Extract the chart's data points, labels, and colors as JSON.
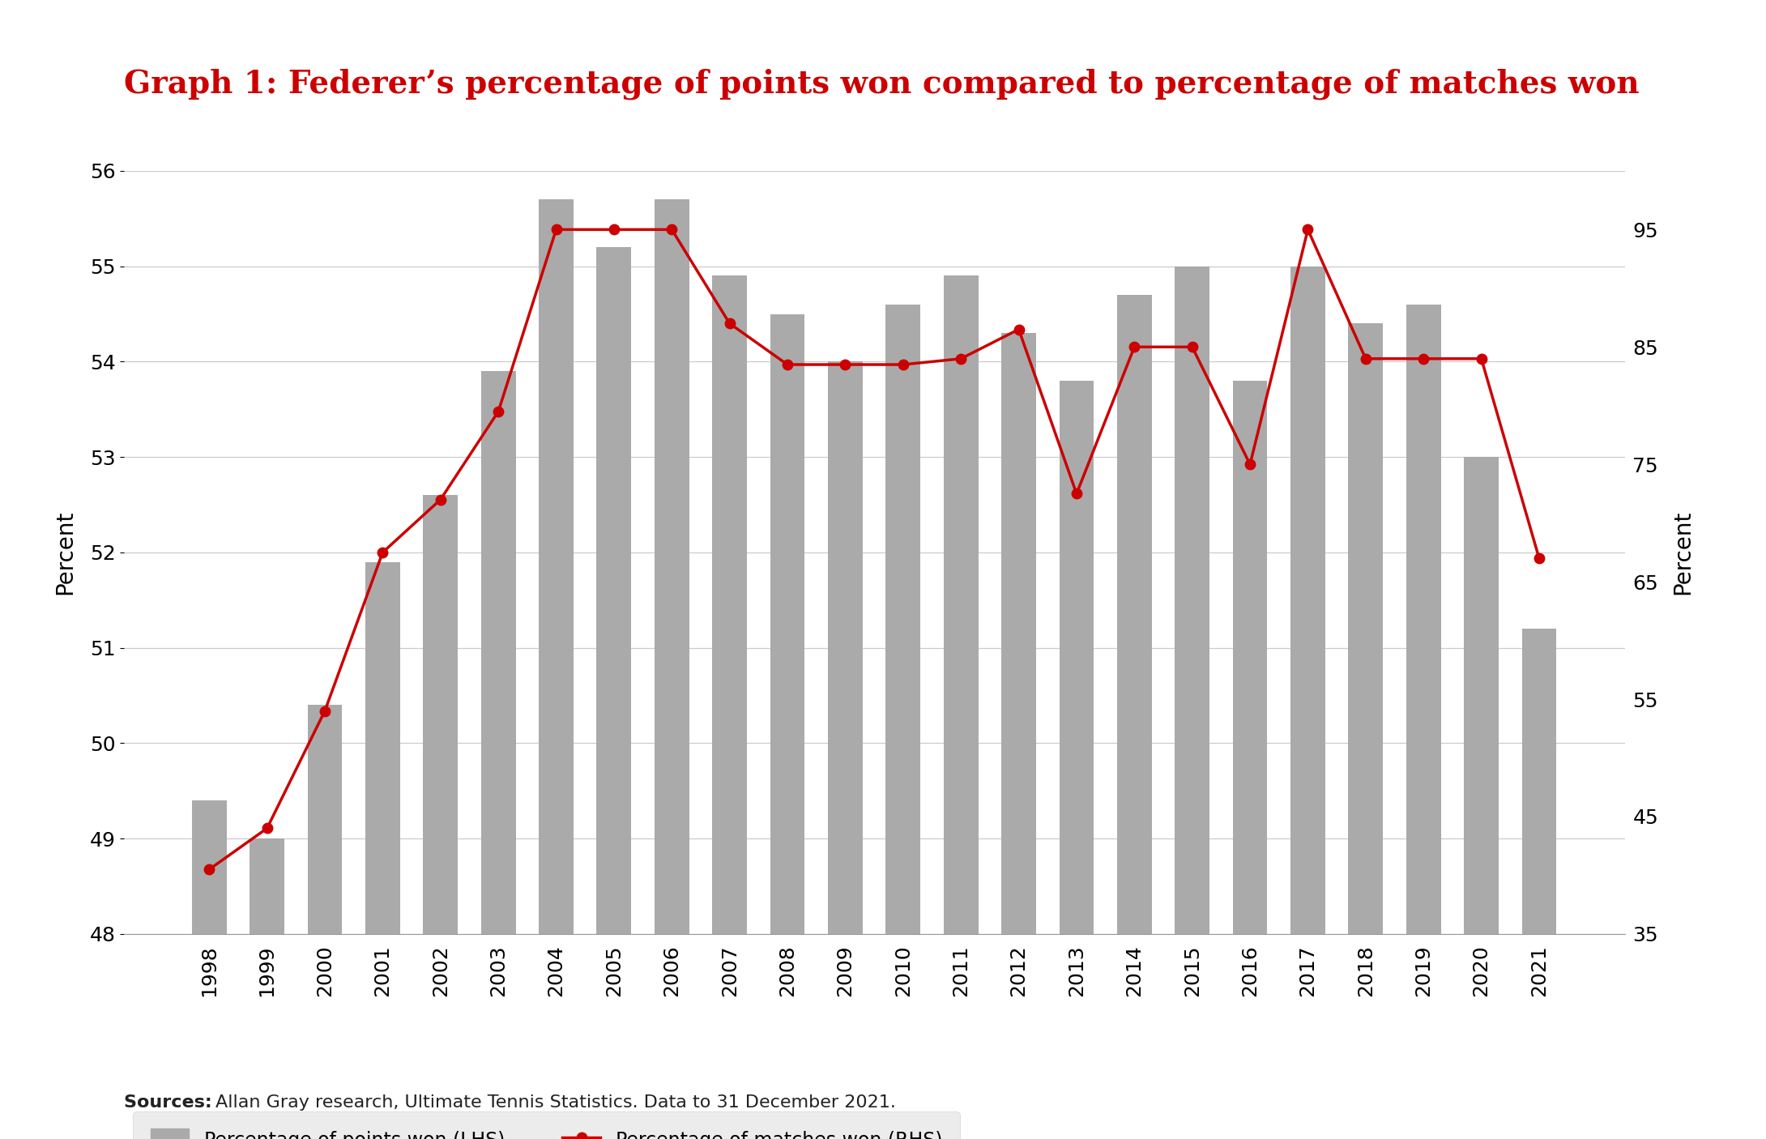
{
  "years": [
    1998,
    1999,
    2000,
    2001,
    2002,
    2003,
    2004,
    2005,
    2006,
    2007,
    2008,
    2009,
    2010,
    2011,
    2012,
    2013,
    2014,
    2015,
    2016,
    2017,
    2018,
    2019,
    2020,
    2021
  ],
  "points_won_pct": [
    49.4,
    49.0,
    50.4,
    51.9,
    52.6,
    53.9,
    55.7,
    55.2,
    55.7,
    54.9,
    54.5,
    54.0,
    54.6,
    54.9,
    54.3,
    53.8,
    54.7,
    55.0,
    53.8,
    55.0,
    54.4,
    54.6,
    53.0,
    51.2
  ],
  "matches_won_pct": [
    40.5,
    44.0,
    54.0,
    67.5,
    72.0,
    79.5,
    95.0,
    95.0,
    95.0,
    87.0,
    83.5,
    83.5,
    83.5,
    84.0,
    86.5,
    72.5,
    85.0,
    85.0,
    75.0,
    95.0,
    84.0,
    84.0,
    84.0,
    67.0
  ],
  "bar_color": "#aaaaaa",
  "line_color": "#cc0000",
  "marker_color": "#cc0000",
  "title": "Graph 1: Federer’s percentage of points won compared to percentage of matches won",
  "title_color": "#cc0000",
  "ylabel_left": "Percent",
  "ylabel_right": "Percent",
  "ylim_left": [
    48,
    56
  ],
  "ylim_right": [
    35,
    100
  ],
  "yticks_left": [
    48,
    49,
    50,
    51,
    52,
    53,
    54,
    55,
    56
  ],
  "yticks_right": [
    35,
    45,
    55,
    65,
    75,
    85,
    95
  ],
  "background_color": "#ffffff",
  "legend_bg": "#e8e8e8",
  "source_text": "Sources: Allan Gray research, Ultimate Tennis Statistics. Data to 31 December 2021.",
  "source_bold": "Sources:",
  "legend_label_bars": "Percentage of points won (LHS)",
  "legend_label_line": "Percentage of matches won (RHS)",
  "title_fontsize": 28,
  "axis_fontsize": 18,
  "ylabel_fontsize": 20,
  "legend_fontsize": 17,
  "source_fontsize": 16
}
